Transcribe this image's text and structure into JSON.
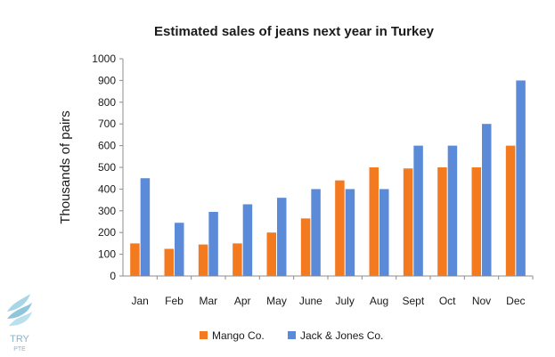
{
  "chart_data": {
    "type": "bar",
    "title": "Estimated sales of jeans next year in Turkey",
    "xlabel": "",
    "ylabel": "Thousands of pairs",
    "ylim": [
      0,
      1000
    ],
    "yticks": [
      0,
      100,
      200,
      300,
      400,
      500,
      600,
      700,
      800,
      900,
      1000
    ],
    "categories": [
      "Jan",
      "Feb",
      "Mar",
      "Apr",
      "May",
      "June",
      "July",
      "Aug",
      "Sept",
      "Oct",
      "Nov",
      "Dec"
    ],
    "series": [
      {
        "name": "Mango Co.",
        "color": "#f47a20",
        "values": [
          150,
          125,
          145,
          150,
          200,
          265,
          440,
          500,
          495,
          500,
          500,
          600
        ]
      },
      {
        "name": "Jack & Jones Co.",
        "color": "#5b8ad8",
        "values": [
          450,
          245,
          295,
          330,
          360,
          400,
          400,
          400,
          600,
          600,
          700,
          900
        ]
      }
    ],
    "grid": false,
    "legend_position": "bottom"
  },
  "watermark": {
    "text": "TRY",
    "subtext": "PTE",
    "icon": "wave-logo-icon"
  }
}
